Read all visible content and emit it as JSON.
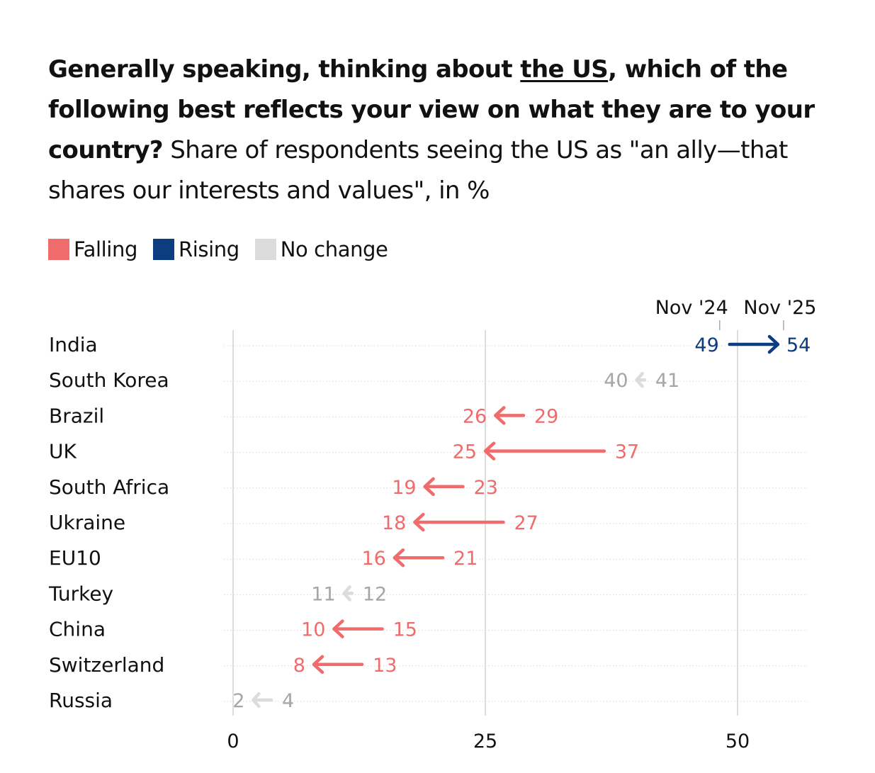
{
  "title": {
    "bold_pre": "Generally speaking, thinking about ",
    "bold_underlined": "the US",
    "bold_post": ", which of the following best reflects your view on what they are to your country?",
    "subtitle": " Share of respondents seeing the US as \"an ally—that shares our interests and values\", in %"
  },
  "legend": [
    {
      "key": "falling",
      "label": "Falling",
      "color": "#f06b6b"
    },
    {
      "key": "rising",
      "label": "Rising",
      "color": "#0b3d80"
    },
    {
      "key": "nochange",
      "label": "No change",
      "color": "#dcdcdc"
    }
  ],
  "chart_data": {
    "type": "dumbbell-arrow",
    "start_label": "Nov '24",
    "end_label": "Nov '25",
    "xlim": [
      0,
      56
    ],
    "xticks": [
      0,
      25,
      50
    ],
    "colors": {
      "falling": "#f06b6b",
      "rising": "#0b3d80",
      "nochange": "#dcdcdc",
      "nochange_text": "#a6a6a6"
    },
    "rows": [
      {
        "country": "India",
        "nov24": 49,
        "nov25": 54,
        "status": "rising"
      },
      {
        "country": "South Korea",
        "nov24": 41,
        "nov25": 40,
        "status": "nochange"
      },
      {
        "country": "Brazil",
        "nov24": 29,
        "nov25": 26,
        "status": "falling"
      },
      {
        "country": "UK",
        "nov24": 37,
        "nov25": 25,
        "status": "falling"
      },
      {
        "country": "South Africa",
        "nov24": 23,
        "nov25": 19,
        "status": "falling"
      },
      {
        "country": "Ukraine",
        "nov24": 27,
        "nov25": 18,
        "status": "falling"
      },
      {
        "country": "EU10",
        "nov24": 21,
        "nov25": 16,
        "status": "falling"
      },
      {
        "country": "Turkey",
        "nov24": 12,
        "nov25": 11,
        "status": "nochange"
      },
      {
        "country": "China",
        "nov24": 15,
        "nov25": 10,
        "status": "falling"
      },
      {
        "country": "Switzerland",
        "nov24": 13,
        "nov25": 8,
        "status": "falling"
      },
      {
        "country": "Russia",
        "nov24": 4,
        "nov25": 2,
        "status": "nochange"
      }
    ]
  }
}
